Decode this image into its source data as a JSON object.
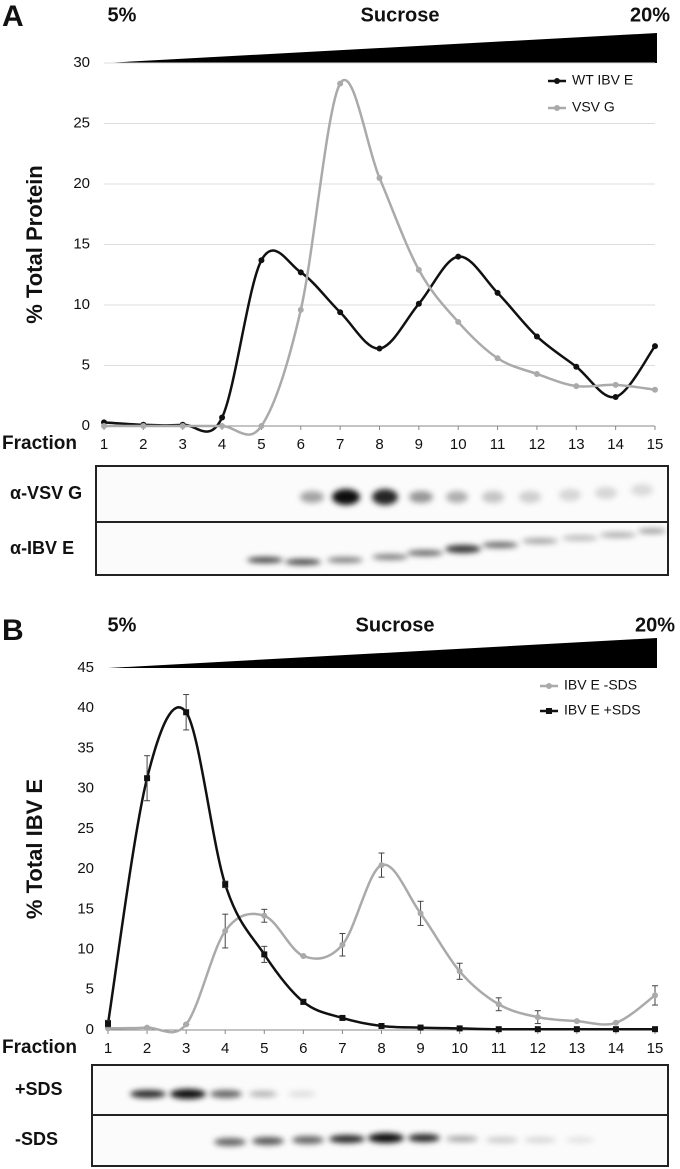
{
  "chart_data": [
    {
      "type": "line",
      "panel": "A",
      "gradient_labels": [
        "5%",
        "Sucrose",
        "20%"
      ],
      "ylabel": "% Total Protein",
      "xlabel": "Fraction",
      "x": [
        1,
        2,
        3,
        4,
        5,
        6,
        7,
        8,
        9,
        10,
        11,
        12,
        13,
        14,
        15
      ],
      "xlim": [
        1,
        15
      ],
      "xticks": [
        1,
        2,
        3,
        4,
        5,
        6,
        7,
        8,
        9,
        10,
        11,
        12,
        13,
        14,
        15
      ],
      "ylim": [
        0,
        30
      ],
      "yticks": [
        0,
        5,
        10,
        15,
        20,
        25,
        30
      ],
      "grid": true,
      "series": [
        {
          "name": "WT IBV E",
          "color": "#111111",
          "marker": "circle",
          "values": [
            0.3,
            0.1,
            0.1,
            0.7,
            13.7,
            12.7,
            9.4,
            6.4,
            10.1,
            14,
            11,
            7.4,
            4.9,
            2.4,
            6.6
          ]
        },
        {
          "name": "VSV G",
          "color": "#aaaaaa",
          "marker": "circle",
          "values": [
            0,
            0,
            0,
            0,
            0,
            9.6,
            28.3,
            20.5,
            12.9,
            8.6,
            5.6,
            4.3,
            3.3,
            3.4,
            3.0
          ]
        }
      ],
      "blot_labels": [
        "α-VSV G",
        "α-IBV E"
      ]
    },
    {
      "type": "line",
      "panel": "B",
      "gradient_labels": [
        "5%",
        "Sucrose",
        "20%"
      ],
      "ylabel": "% Total IBV E",
      "xlabel": "Fraction",
      "x": [
        1,
        2,
        3,
        4,
        5,
        6,
        7,
        8,
        9,
        10,
        11,
        12,
        13,
        14,
        15
      ],
      "xlim": [
        1,
        15
      ],
      "xticks": [
        1,
        2,
        3,
        4,
        5,
        6,
        7,
        8,
        9,
        10,
        11,
        12,
        13,
        14,
        15
      ],
      "ylim": [
        0,
        45
      ],
      "yticks": [
        0,
        5,
        10,
        15,
        20,
        25,
        30,
        35,
        40,
        45
      ],
      "grid": false,
      "series": [
        {
          "name": "IBV E -SDS",
          "color": "#aaaaaa",
          "marker": "circle",
          "values": [
            0.2,
            0.3,
            0.7,
            12.3,
            14.2,
            9.2,
            10.6,
            20.5,
            14.5,
            7.3,
            3.2,
            1.6,
            1.1,
            0.9,
            4.3
          ],
          "errors": [
            0,
            0,
            0,
            2.1,
            0.8,
            0,
            1.4,
            1.5,
            1.5,
            1.0,
            0.8,
            0.8,
            0,
            0,
            1.2
          ]
        },
        {
          "name": "IBV E +SDS",
          "color": "#111111",
          "marker": "square",
          "values": [
            0.8,
            31.3,
            39.5,
            18.1,
            9.4,
            3.5,
            1.5,
            0.5,
            0.3,
            0.2,
            0.1,
            0.1,
            0.1,
            0.1,
            0.1
          ],
          "errors": [
            0.4,
            2.8,
            2.2,
            0.4,
            1.0,
            0.3,
            0.2,
            0,
            0,
            0,
            0,
            0,
            0,
            0,
            0
          ]
        }
      ],
      "blot_labels": [
        "+SDS",
        "-SDS"
      ]
    }
  ]
}
